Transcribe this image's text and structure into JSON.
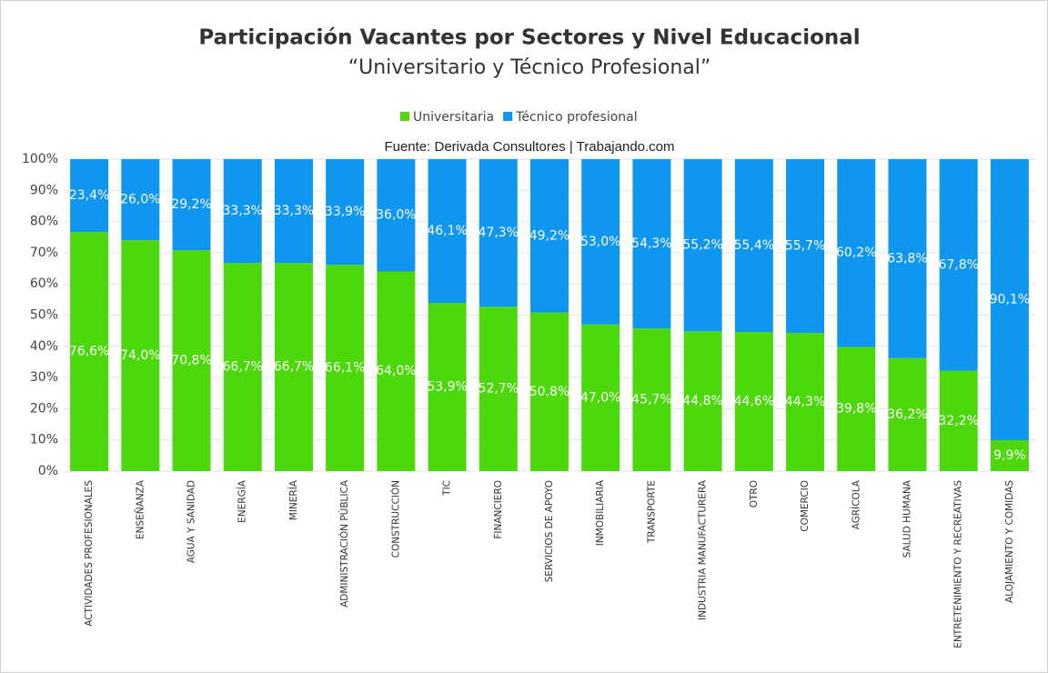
{
  "chart_data": {
    "type": "stacked_bar",
    "title": "Participación Vacantes por Sectores y Nivel Educacional",
    "subtitle": "“Universitario y Técnico Profesional”",
    "source": "Fuente: Derivada Consultores | Trabajando.com",
    "categories": [
      "ACTIVIDADES PROFESIONALES",
      "ENSEÑANZA",
      "AGUA Y SANIDAD",
      "ENERGÍA",
      "MINERÍA",
      "ADMINISTRACIÓN PÚBLICA",
      "CONSTRUCCIÓN",
      "TIC",
      "FINANCIERO",
      "SERVICIOS DE APOYO",
      "INMOBILIARIA",
      "TRANSPORTE",
      "INDUSTRIA MANUFACTURERA",
      "OTRO",
      "COMERCIO",
      "AGRÍCOLA",
      "SALUD HUMANA",
      "ENTRETENIMIENTO Y RECREATIVAS",
      "ALOJAMIENTO Y COMIDAS"
    ],
    "series": [
      {
        "name": "Universitaria",
        "color": "#4cd80c",
        "values": [
          76.6,
          74.0,
          70.8,
          66.7,
          66.7,
          66.1,
          64.0,
          53.9,
          52.7,
          50.8,
          47.0,
          45.7,
          44.8,
          44.6,
          44.3,
          39.8,
          36.2,
          32.2,
          9.9
        ],
        "value_labels": [
          "76,6%",
          "74,0%",
          "70,8%",
          "66,7%",
          "66,7%",
          "66,1%",
          "64,0%",
          "53,9%",
          "52,7%",
          "50,8%",
          "47,0%",
          "45,7%",
          "44,8%",
          "44,6%",
          "44,3%",
          "39,8%",
          "36,2%",
          "32,2%",
          "9,9%"
        ]
      },
      {
        "name": "Técnico profesional",
        "color": "#0f96ee",
        "values": [
          23.4,
          26.0,
          29.2,
          33.3,
          33.3,
          33.9,
          36.0,
          46.1,
          47.3,
          49.2,
          53.0,
          54.3,
          55.2,
          55.4,
          55.7,
          60.2,
          63.8,
          67.8,
          90.1
        ],
        "value_labels": [
          "23,4%",
          "26,0%",
          "29,2%",
          "33,3%",
          "33,3%",
          "33,9%",
          "36,0%",
          "46,1%",
          "47,3%",
          "49,2%",
          "53,0%",
          "54,3%",
          "55,2%",
          "55,4%",
          "55,7%",
          "60,2%",
          "63,8%",
          "67,8%",
          "90,1%"
        ]
      }
    ],
    "ylim": [
      0,
      100
    ],
    "yticks": [
      {
        "value": 0,
        "label": "0%"
      },
      {
        "value": 10,
        "label": "10%"
      },
      {
        "value": 20,
        "label": "20%"
      },
      {
        "value": 30,
        "label": "30%"
      },
      {
        "value": 40,
        "label": "40%"
      },
      {
        "value": 50,
        "label": "50%"
      },
      {
        "value": 60,
        "label": "60%"
      },
      {
        "value": 70,
        "label": "70%"
      },
      {
        "value": 80,
        "label": "80%"
      },
      {
        "value": 90,
        "label": "90%"
      },
      {
        "value": 100,
        "label": "100%"
      }
    ],
    "grid": true,
    "legend": "top"
  }
}
